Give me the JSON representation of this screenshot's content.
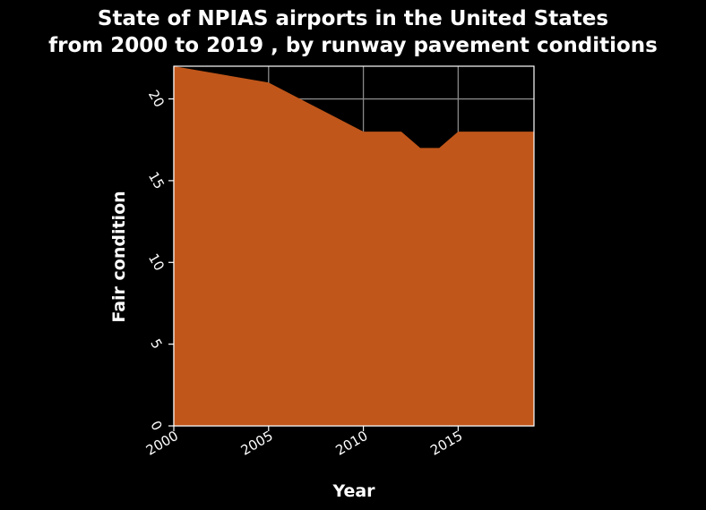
{
  "chart_data": {
    "type": "area",
    "title_lines": [
      "State of NPIAS airports in the United States",
      "from 2000 to 2019 , by runway pavement conditions"
    ],
    "xlabel": "Year",
    "ylabel": "Fair condition",
    "x": [
      2000,
      2005,
      2007,
      2010,
      2012,
      2013,
      2014,
      2015,
      2019
    ],
    "y": [
      22,
      21,
      19.8,
      18,
      18,
      17,
      17,
      18,
      18
    ],
    "xlim": [
      2000,
      2019
    ],
    "ylim": [
      0,
      22
    ],
    "x_ticks": [
      2000,
      2005,
      2010,
      2015
    ],
    "x_tick_labels": [
      "2000",
      "2005",
      "2010",
      "2015"
    ],
    "y_ticks": [
      0,
      5,
      10,
      15,
      20
    ],
    "y_tick_labels": [
      "0",
      "5",
      "10",
      "15",
      "20"
    ],
    "grid": true,
    "fill_color": "#c0561a",
    "background_color": "#000000",
    "text_color": "#ffffff",
    "grid_color": "#888888"
  }
}
